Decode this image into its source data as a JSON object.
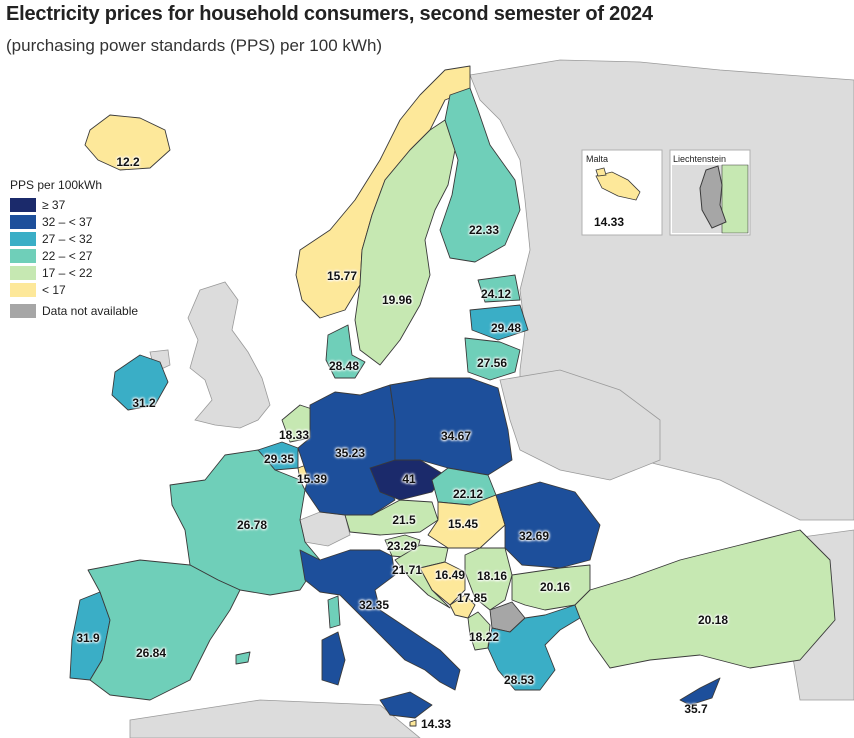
{
  "title": "Electricity prices for household consumers, second semester of 2024",
  "subtitle": "(purchasing power standards (PPS) per 100 kWh)",
  "legend": {
    "title": "PPS per 100kWh",
    "classes": [
      {
        "label": "≥ 37",
        "color": "#1b2a6b"
      },
      {
        "label": "32 – < 37",
        "color": "#1d4f9b"
      },
      {
        "label": "27 – < 32",
        "color": "#3aaec6"
      },
      {
        "label": "22 – < 27",
        "color": "#6fcfb9"
      },
      {
        "label": "17 – < 22",
        "color": "#c6e8b2"
      },
      {
        "label": "< 17",
        "color": "#fde89a"
      }
    ],
    "na_label": "Data not available",
    "na_color": "#a6a6a6"
  },
  "map_colors": {
    "sea": "#ffffff",
    "non_eu_land": "#dcdcdc",
    "border": "#3a3a3a"
  },
  "countries": {
    "iceland": "12.2",
    "norway": "15.77",
    "sweden": "19.96",
    "finland": "22.33",
    "estonia": "24.12",
    "latvia": "29.48",
    "lithuania": "27.56",
    "denmark": "28.48",
    "ireland": "31.2",
    "netherlands": "18.33",
    "belgium": "29.35",
    "luxembourg": "15.39",
    "germany": "35.23",
    "poland": "34.67",
    "czechia": "41",
    "slovakia": "22.12",
    "austria": "21.5",
    "hungary": "15.45",
    "romania": "32.69",
    "france": "26.78",
    "slovenia": "23.29",
    "croatia": "21.71",
    "bosnia": "16.49",
    "serbia": "18.16",
    "montenegro": "17.85",
    "bulgaria": "20.16",
    "albania": "18.22",
    "greece": "28.53",
    "turkey": "20.18",
    "italy": "32.35",
    "malta_main": "14.33",
    "portugal": "31.9",
    "spain": "26.84",
    "cyprus": "35.7"
  },
  "insets": {
    "malta": {
      "title": "Malta",
      "value": "14.33"
    },
    "liechtenstein": {
      "title": "Liechtenstein"
    }
  }
}
